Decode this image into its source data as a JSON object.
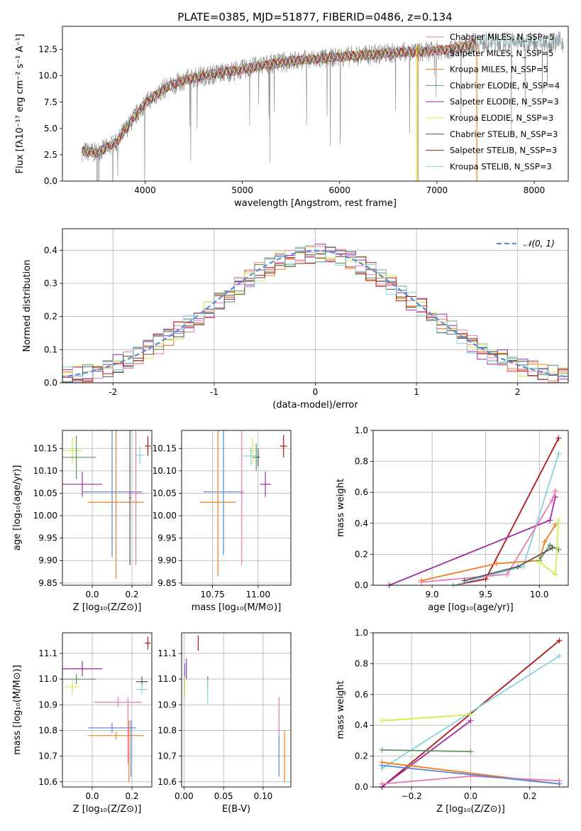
{
  "title": "PLATE=0385, MJD=51877, FIBERID=0486, z=0.134",
  "colors": {
    "chabrier_miles": "#f08080",
    "salpeter_miles": "#e87ab4",
    "kroupa_miles": "#f07d1e",
    "chabrier_elodie": "#5c9460",
    "salpeter_elodie": "#a02aa8",
    "kroupa_elodie": "#d4ea50",
    "chabrier_stelib": "#555555",
    "salpeter_stelib": "#b31416",
    "kroupa_stelib": "#86d3de",
    "miles_blue": "#5a86d6",
    "normal_curve": "#5b8bd8"
  },
  "chart_data": [
    {
      "id": "spectrum",
      "type": "line",
      "title": "PLATE=0385, MJD=51877, FIBERID=0486, z=0.134",
      "xlabel": "wavelength [Angstrom, rest frame]",
      "ylabel": "Flux [fλ10⁻¹⁷ erg cm⁻² s⁻¹ A⁻¹]",
      "xlim": [
        3150,
        8350
      ],
      "ylim": [
        0,
        14.7
      ],
      "xticks": [
        4000,
        5000,
        6000,
        7000,
        8000
      ],
      "yticks": [
        0.0,
        2.5,
        5.0,
        7.5,
        10.0,
        12.5
      ],
      "legend_position": "top-right",
      "legend": [
        "Chabrier MILES, N_SSP=5",
        "Salpeter MILES, N_SSP=5",
        "Kroupa MILES, N_SSP=5",
        "Chabrier ELODIE, N_SSP=4",
        "Salpeter ELODIE, N_SSP=3",
        "Kroupa ELODIE, N_SSP=3",
        "Chabrier STELIB, N_SSP=3",
        "Salpeter STELIB, N_SSP=3",
        "Kroupa STELIB, N_SSP=3"
      ],
      "continuum": {
        "x": [
          3350,
          3500,
          3700,
          3900,
          4000,
          4200,
          4400,
          4600,
          4800,
          5000,
          5200,
          5500,
          5800,
          6000,
          6300,
          6600,
          6900,
          7100,
          7300,
          7400
        ],
        "y": [
          2.8,
          2.7,
          3.6,
          6.2,
          7.4,
          8.8,
          9.6,
          10.0,
          10.3,
          10.6,
          11.0,
          11.4,
          11.6,
          11.8,
          12.0,
          12.2,
          12.3,
          12.5,
          12.8,
          13.2
        ]
      },
      "data_extent": [
        3350,
        8300
      ]
    },
    {
      "id": "residuals",
      "type": "histogram",
      "xlabel": "(data-model)/error",
      "ylabel": "Normed distribution",
      "xlim": [
        -2.5,
        2.5
      ],
      "ylim": [
        0,
        0.465
      ],
      "xticks": [
        -2,
        -1,
        0,
        1,
        2
      ],
      "yticks": [
        0.0,
        0.1,
        0.2,
        0.3,
        0.4
      ],
      "grid": true,
      "legend_position": "top-right",
      "legend": [
        "𝒩(0, 1)"
      ],
      "normal": {
        "mean": 0,
        "sigma": 1
      }
    },
    {
      "id": "age_vs_Z",
      "type": "errorbar",
      "xlabel": "Z [log₁₀(Z/Z⊙)]",
      "ylabel": "age  [log₁₀(age/yr)]",
      "xlim": [
        -0.15,
        0.3
      ],
      "ylim": [
        9.845,
        10.19
      ],
      "xticks": [
        0.0,
        0.2
      ],
      "xticklabels": [
        "0.0",
        "0.2"
      ],
      "yticks": [
        9.85,
        9.9,
        9.95,
        10.0,
        10.05,
        10.1,
        10.15
      ],
      "points": [
        {
          "model": "kroupa_elodie",
          "x": -0.1,
          "y": 10.145,
          "xerr": 0.05,
          "yerr": 0.03
        },
        {
          "model": "chabrier_elodie",
          "x": -0.08,
          "y": 10.13,
          "xerr": 0.1,
          "yerr": 0.048
        },
        {
          "model": "salpeter_elodie",
          "x": -0.05,
          "y": 10.07,
          "xerr": 0.1,
          "yerr": 0.028
        },
        {
          "model": "kroupa_stelib",
          "x": 0.24,
          "y": 10.135,
          "xerr": 0.025,
          "yerr": 0.02
        },
        {
          "model": "salpeter_stelib",
          "x": 0.28,
          "y": 10.155,
          "xerr": 0.015,
          "yerr": 0.022
        },
        {
          "model": "miles_blue",
          "x": 0.1,
          "y": 10.053,
          "xerr": 0.15,
          "yerr": 0.145
        },
        {
          "model": "salpeter_miles",
          "x": 0.22,
          "y": 10.05,
          "xerr": 0.04,
          "yerr": 0.16
        },
        {
          "model": "kroupa_miles",
          "x": 0.12,
          "y": 10.03,
          "xerr": 0.14,
          "yerr": 0.17
        },
        {
          "model": "chabrier_stelib",
          "x": 0.19,
          "y": 10.04,
          "xerr": 0.005,
          "yerr": 0.15
        }
      ]
    },
    {
      "id": "age_vs_mass",
      "type": "errorbar",
      "xlabel": "mass [log₁₀(M/M⊙)]",
      "ylabel": "",
      "xlim": [
        10.58,
        11.18
      ],
      "ylim": [
        9.845,
        10.19
      ],
      "xticks": [
        10.75,
        11.0
      ],
      "xticklabels": [
        "10.75",
        "11.00"
      ],
      "yticks": [
        9.85,
        9.9,
        9.95,
        10.0,
        10.05,
        10.1,
        10.15
      ],
      "points": [
        {
          "model": "kroupa_elodie",
          "x": 10.97,
          "y": 10.145,
          "xerr": 0.02,
          "yerr": 0.03
        },
        {
          "model": "chabrier_elodie",
          "x": 10.99,
          "y": 10.13,
          "xerr": 0.02,
          "yerr": 0.03
        },
        {
          "model": "salpeter_elodie",
          "x": 11.04,
          "y": 10.07,
          "xerr": 0.03,
          "yerr": 0.028
        },
        {
          "model": "kroupa_stelib",
          "x": 10.96,
          "y": 10.133,
          "xerr": 0.05,
          "yerr": 0.02
        },
        {
          "model": "salpeter_stelib",
          "x": 11.14,
          "y": 10.155,
          "xerr": 0.02,
          "yerr": 0.025
        },
        {
          "model": "miles_blue",
          "x": 10.81,
          "y": 10.053,
          "xerr": 0.11,
          "yerr": 0.14
        },
        {
          "model": "salpeter_miles",
          "x": 10.91,
          "y": 10.05,
          "xerr": 0.015,
          "yerr": 0.16
        },
        {
          "model": "kroupa_miles",
          "x": 10.78,
          "y": 10.03,
          "xerr": 0.1,
          "yerr": 0.165
        },
        {
          "model": "chabrier_stelib",
          "x": 11.0,
          "y": 10.13,
          "xerr": 0.01,
          "yerr": 0.02
        }
      ]
    },
    {
      "id": "massweight_vs_age",
      "type": "line",
      "xlabel": "age  [log₁₀(age/yr)]",
      "ylabel": "mass weight",
      "xlim": [
        8.45,
        10.27
      ],
      "ylim": [
        0,
        1.0
      ],
      "xticks": [
        9.0,
        9.5,
        10.0
      ],
      "yticks": [
        0.0,
        0.2,
        0.4,
        0.6,
        0.8,
        1.0
      ],
      "series": [
        {
          "model": "salpeter_stelib",
          "x": [
            9.2,
            9.5,
            10.18
          ],
          "y": [
            0.0,
            0.04,
            0.95
          ]
        },
        {
          "model": "kroupa_stelib",
          "x": [
            9.2,
            9.85,
            10.18
          ],
          "y": [
            0.0,
            0.12,
            0.85
          ]
        },
        {
          "model": "salpeter_elodie",
          "x": [
            8.6,
            10.1,
            10.15
          ],
          "y": [
            0.0,
            0.42,
            0.57
          ]
        },
        {
          "model": "salpeter_miles",
          "x": [
            8.9,
            9.7,
            10.12,
            10.15
          ],
          "y": [
            0.02,
            0.07,
            0.55,
            0.61
          ]
        },
        {
          "model": "kroupa_miles",
          "x": [
            8.9,
            9.6,
            10.0,
            10.05,
            10.15
          ],
          "y": [
            0.03,
            0.14,
            0.16,
            0.28,
            0.39
          ]
        },
        {
          "model": "chabrier_elodie",
          "x": [
            10.0,
            10.1,
            10.18
          ],
          "y": [
            0.16,
            0.26,
            0.23
          ]
        },
        {
          "model": "kroupa_elodie",
          "x": [
            10.0,
            10.15,
            10.18
          ],
          "y": [
            0.15,
            0.07,
            0.42
          ]
        },
        {
          "model": "chabrier_stelib",
          "x": [
            9.3,
            9.8,
            10.12
          ],
          "y": [
            0.03,
            0.12,
            0.24
          ]
        }
      ]
    },
    {
      "id": "mass_vs_Z",
      "type": "errorbar",
      "xlabel": "Z [log₁₀(Z/Z⊙)]",
      "ylabel": "mass [log₁₀(M/M⊙)]",
      "xlim": [
        -0.15,
        0.3
      ],
      "ylim": [
        10.58,
        11.18
      ],
      "xticks": [
        0.0,
        0.2
      ],
      "xticklabels": [
        "0.0",
        "0.2"
      ],
      "yticks": [
        10.6,
        10.7,
        10.8,
        10.9,
        11.0,
        11.1
      ],
      "points": [
        {
          "model": "salpeter_stelib",
          "x": 0.28,
          "y": 11.14,
          "xerr": 0.015,
          "yerr": 0.025
        },
        {
          "model": "salpeter_elodie",
          "x": -0.05,
          "y": 11.04,
          "xerr": 0.1,
          "yerr": 0.03
        },
        {
          "model": "chabrier_elodie",
          "x": -0.08,
          "y": 11.0,
          "xerr": 0.1,
          "yerr": 0.02
        },
        {
          "model": "kroupa_elodie",
          "x": -0.1,
          "y": 10.97,
          "xerr": 0.04,
          "yerr": 0.03
        },
        {
          "model": "chabrier_stelib",
          "x": 0.25,
          "y": 10.99,
          "xerr": 0.03,
          "yerr": 0.02
        },
        {
          "model": "kroupa_stelib",
          "x": 0.25,
          "y": 10.96,
          "xerr": 0.03,
          "yerr": 0.02
        },
        {
          "model": "salpeter_miles",
          "x": 0.13,
          "y": 10.91,
          "xerr": 0.12,
          "yerr": 0.02
        },
        {
          "model": "miles_blue",
          "x": 0.1,
          "y": 10.81,
          "xerr": 0.12,
          "yerr": 0.02
        },
        {
          "model": "kroupa_miles",
          "x": 0.12,
          "y": 10.78,
          "xerr": 0.14,
          "yerr": 0.015
        },
        {
          "model": "kroupa_miles",
          "x": 0.185,
          "y": 10.72,
          "xerr": 0.002,
          "yerr": 0.12
        },
        {
          "model": "miles_blue",
          "x": 0.195,
          "y": 10.73,
          "xerr": 0.002,
          "yerr": 0.11
        },
        {
          "model": "salpeter_miles",
          "x": 0.18,
          "y": 10.8,
          "xerr": 0.002,
          "yerr": 0.13
        }
      ]
    },
    {
      "id": "mass_vs_ebv",
      "type": "errorbar",
      "xlabel": "E(B-V)",
      "ylabel": "",
      "xlim": [
        -0.003,
        0.135
      ],
      "ylim": [
        10.58,
        11.18
      ],
      "xticks": [
        0.0,
        0.05,
        0.1
      ],
      "xticklabels": [
        "0.00",
        "0.05",
        "0.10"
      ],
      "yticks": [
        10.6,
        10.7,
        10.8,
        10.9,
        11.0,
        11.1
      ],
      "points": [
        {
          "model": "salpeter_stelib",
          "x": 0.018,
          "y": 11.14,
          "xerr": 0.0,
          "yerr": 0.03
        },
        {
          "model": "salpeter_elodie",
          "x": 0.003,
          "y": 11.04,
          "xerr": 0.0,
          "yerr": 0.04
        },
        {
          "model": "miles_blue",
          "x": 0.001,
          "y": 11.02,
          "xerr": 0.0,
          "yerr": 0.04
        },
        {
          "model": "kroupa_elodie",
          "x": 0.001,
          "y": 10.97,
          "xerr": 0.0,
          "yerr": 0.04
        },
        {
          "model": "chabrier_stelib",
          "x": 0.03,
          "y": 10.99,
          "xerr": 0.0,
          "yerr": 0.02
        },
        {
          "model": "kroupa_stelib",
          "x": 0.03,
          "y": 10.95,
          "xerr": 0.0,
          "yerr": 0.05
        },
        {
          "model": "salpeter_miles",
          "x": 0.12,
          "y": 10.85,
          "xerr": 0.0,
          "yerr": 0.08
        },
        {
          "model": "miles_blue",
          "x": 0.12,
          "y": 10.7,
          "xerr": 0.0,
          "yerr": 0.08
        },
        {
          "model": "kroupa_miles",
          "x": 0.127,
          "y": 10.7,
          "xerr": 0.0,
          "yerr": 0.1
        }
      ]
    },
    {
      "id": "massweight_vs_Z",
      "type": "line",
      "xlabel": "Z [log₁₀(Z/Z⊙)]",
      "ylabel": "mass weight",
      "xlim": [
        -0.33,
        0.33
      ],
      "ylim": [
        0,
        1.0
      ],
      "xticks": [
        -0.2,
        0.0,
        0.2
      ],
      "xticklabels": [
        "−0.2",
        "0.0",
        "0.2"
      ],
      "yticks": [
        0.0,
        0.2,
        0.4,
        0.6,
        0.8,
        1.0
      ],
      "series": [
        {
          "model": "salpeter_stelib",
          "x": [
            -0.3,
            0.3
          ],
          "y": [
            0.0,
            0.95
          ]
        },
        {
          "model": "kroupa_stelib",
          "x": [
            -0.3,
            0.3
          ],
          "y": [
            0.12,
            0.85
          ]
        },
        {
          "model": "salpeter_elodie",
          "x": [
            -0.3,
            0.0
          ],
          "y": [
            0.0,
            0.43
          ]
        },
        {
          "model": "kroupa_elodie",
          "x": [
            -0.3,
            0.0
          ],
          "y": [
            0.43,
            0.47
          ]
        },
        {
          "model": "chabrier_elodie",
          "x": [
            -0.3,
            0.0
          ],
          "y": [
            0.24,
            0.23
          ]
        },
        {
          "model": "kroupa_miles",
          "x": [
            -0.3,
            0.3
          ],
          "y": [
            0.16,
            0.02
          ]
        },
        {
          "model": "salpeter_miles",
          "x": [
            -0.3,
            0.0,
            0.3
          ],
          "y": [
            0.02,
            0.07,
            0.04
          ]
        },
        {
          "model": "miles_blue",
          "x": [
            -0.3,
            0.3
          ],
          "y": [
            0.14,
            0.02
          ]
        }
      ]
    }
  ]
}
